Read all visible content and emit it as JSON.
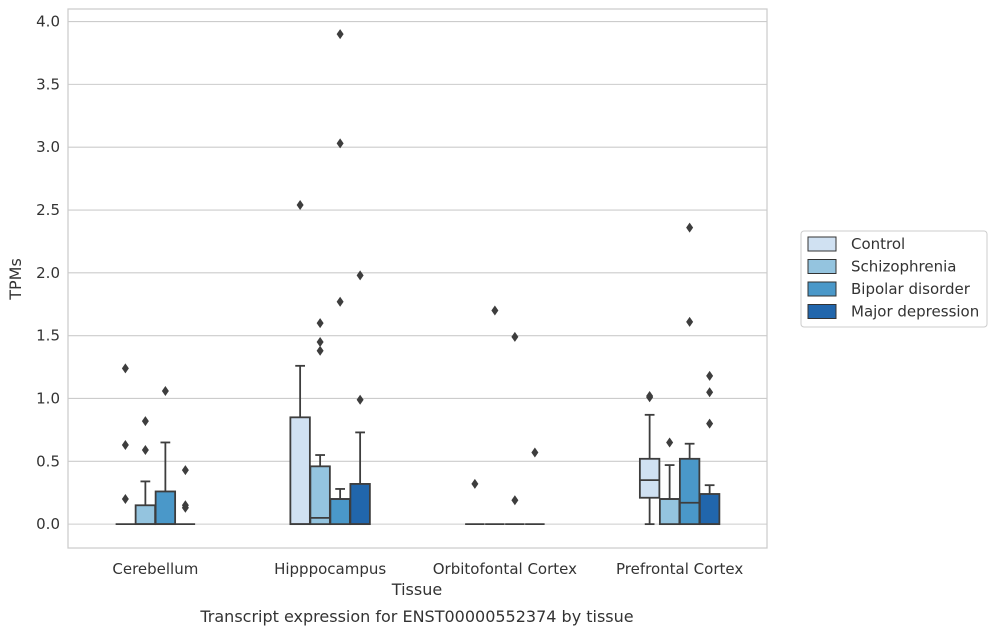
{
  "caption": "Transcript expression for ENST00000552374 by tissue",
  "chart_data": {
    "type": "box",
    "xlabel": "Tissue",
    "ylabel": "TPMs",
    "ylim": [
      -0.19,
      4.1
    ],
    "yticks": [
      "0.0",
      "0.5",
      "1.0",
      "1.5",
      "2.0",
      "2.5",
      "3.0",
      "3.5",
      "4.0"
    ],
    "grid": "horizontal",
    "legend_position": "right",
    "categories": [
      "Cerebellum",
      "Hipppocampus",
      "Orbitofontal Cortex",
      "Prefrontal Cortex"
    ],
    "series": [
      {
        "name": "Control",
        "color": "#d0e1f2",
        "boxes": [
          {
            "q1": 0,
            "median": 0,
            "q3": 0,
            "whislo": 0,
            "whishi": 0,
            "fliers": [
              1.24,
              0.63,
              0.2
            ]
          },
          {
            "q1": 0,
            "median": 0,
            "q3": 0.85,
            "whislo": 0,
            "whishi": 1.26,
            "fliers": [
              2.54
            ]
          },
          {
            "q1": 0,
            "median": 0,
            "q3": 0,
            "whislo": 0,
            "whishi": 0,
            "fliers": [
              0.32
            ]
          },
          {
            "q1": 0.21,
            "median": 0.35,
            "q3": 0.52,
            "whislo": 0,
            "whishi": 0.87,
            "fliers": [
              1.01,
              1.02
            ]
          }
        ]
      },
      {
        "name": "Schizophrenia",
        "color": "#94c4df",
        "boxes": [
          {
            "q1": 0,
            "median": 0,
            "q3": 0.15,
            "whislo": 0,
            "whishi": 0.34,
            "fliers": [
              0.82,
              0.59
            ]
          },
          {
            "q1": 0,
            "median": 0.05,
            "q3": 0.46,
            "whislo": 0,
            "whishi": 0.55,
            "fliers": [
              1.6,
              1.45,
              1.38
            ]
          },
          {
            "q1": 0,
            "median": 0,
            "q3": 0,
            "whislo": 0,
            "whishi": 0,
            "fliers": [
              1.7
            ]
          },
          {
            "q1": 0,
            "median": 0.2,
            "q3": 0.2,
            "whislo": 0,
            "whishi": 0.47,
            "fliers": [
              0.65
            ]
          }
        ]
      },
      {
        "name": "Bipolar disorder",
        "color": "#4a98c9",
        "boxes": [
          {
            "q1": 0,
            "median": 0,
            "q3": 0.26,
            "whislo": 0,
            "whishi": 0.65,
            "fliers": [
              1.06
            ]
          },
          {
            "q1": 0,
            "median": 0.2,
            "q3": 0.2,
            "whislo": 0,
            "whishi": 0.28,
            "fliers": [
              3.9,
              3.03,
              1.77
            ]
          },
          {
            "q1": 0,
            "median": 0,
            "q3": 0,
            "whislo": 0,
            "whishi": 0,
            "fliers": [
              1.49,
              0.19
            ]
          },
          {
            "q1": 0,
            "median": 0.17,
            "q3": 0.52,
            "whislo": 0,
            "whishi": 0.64,
            "fliers": [
              2.36,
              1.61
            ]
          }
        ]
      },
      {
        "name": "Major depression",
        "color": "#2166ac",
        "boxes": [
          {
            "q1": 0,
            "median": 0,
            "q3": 0,
            "whislo": 0,
            "whishi": 0,
            "fliers": [
              0.43,
              0.15,
              0.13
            ]
          },
          {
            "q1": 0,
            "median": 0,
            "q3": 0.32,
            "whislo": 0,
            "whishi": 0.73,
            "fliers": [
              1.98,
              0.99
            ]
          },
          {
            "q1": 0,
            "median": 0,
            "q3": 0,
            "whislo": 0,
            "whishi": 0,
            "fliers": [
              0.57
            ]
          },
          {
            "q1": 0,
            "median": 0,
            "q3": 0.24,
            "whislo": 0,
            "whishi": 0.31,
            "fliers": [
              1.18,
              1.05,
              0.8
            ]
          }
        ]
      }
    ]
  }
}
